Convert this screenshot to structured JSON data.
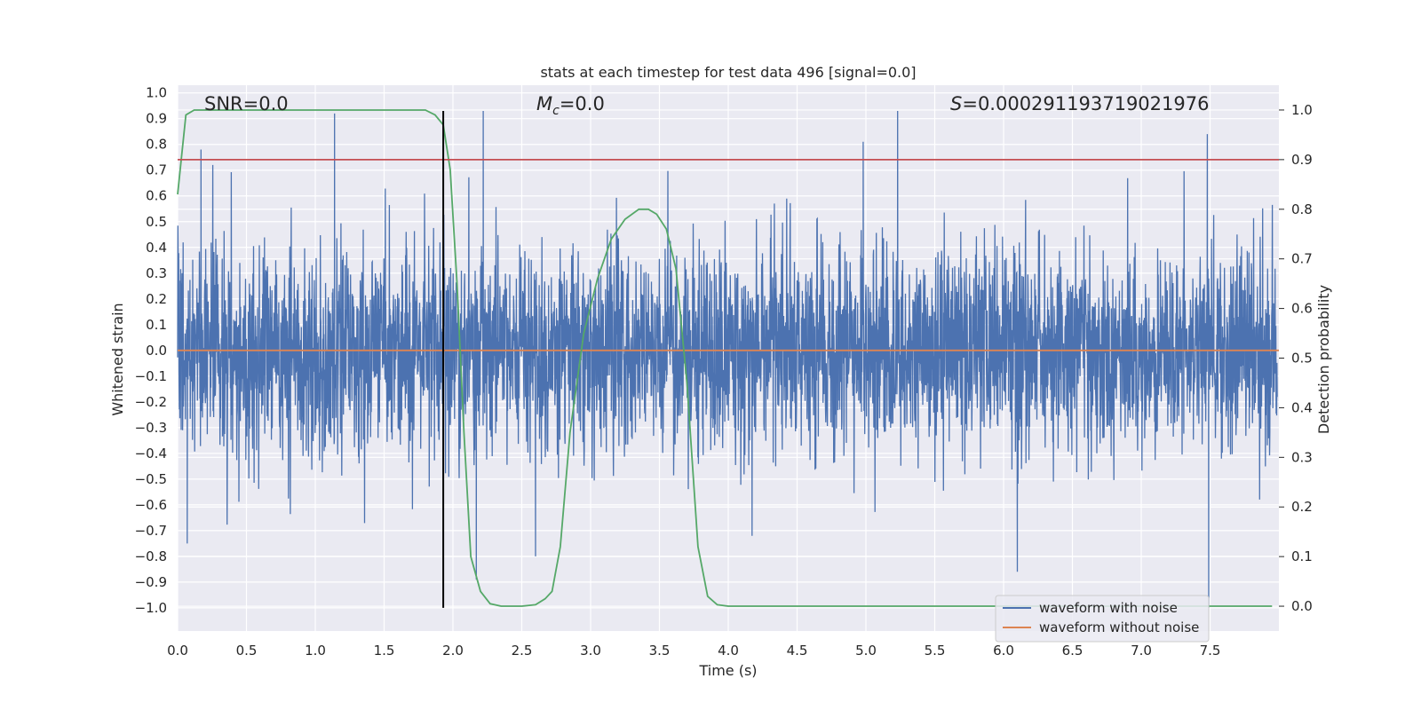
{
  "chart_data": {
    "type": "line",
    "title": "stats at each timestep for test data 496 [signal=0.0]",
    "xlabel": "Time (s)",
    "ylabel": "Whitened strain",
    "y2label": "Detection probability",
    "xlim": [
      0.0,
      8.0
    ],
    "ylim": [
      -1.09,
      1.03
    ],
    "y2lim": [
      -0.05,
      1.05
    ],
    "x_ticks": [
      "0.0",
      "0.5",
      "1.0",
      "1.5",
      "2.0",
      "2.5",
      "3.0",
      "3.5",
      "4.0",
      "4.5",
      "5.0",
      "5.5",
      "6.0",
      "6.5",
      "7.0",
      "7.5"
    ],
    "y_ticks": [
      "1.0",
      "0.9",
      "0.8",
      "0.7",
      "0.6",
      "0.5",
      "0.4",
      "0.3",
      "0.2",
      "0.1",
      "0.0",
      "−0.1",
      "−0.2",
      "−0.3",
      "−0.4",
      "−0.5",
      "−0.6",
      "−0.7",
      "−0.8",
      "−0.9",
      "−1.0"
    ],
    "y2_ticks": [
      "1.0",
      "0.9",
      "0.8",
      "0.7",
      "0.6",
      "0.5",
      "0.4",
      "0.3",
      "0.2",
      "0.1",
      "0.0"
    ],
    "grid": true,
    "legend_position": "lower-right",
    "annotations": {
      "snr": "SNR=0.0",
      "mc_symbol": "M",
      "mc_sub": "c",
      "mc_value": "=0.0",
      "s_symbol": "S",
      "s_value": "=0.000291193719021976"
    },
    "series": [
      {
        "name": "waveform with noise",
        "color": "#4c72b0",
        "axis": "left",
        "description": "dense noise, envelope mostly within ±0.5 with spikes",
        "spikes": [
          [
            0.17,
            0.78
          ],
          [
            1.14,
            0.92
          ],
          [
            2.22,
            0.93
          ],
          [
            5.23,
            0.93
          ],
          [
            4.98,
            0.81
          ],
          [
            7.48,
            0.84
          ],
          [
            6.1,
            -0.86
          ],
          [
            7.49,
            -1.0
          ],
          [
            0.07,
            -0.75
          ],
          [
            2.17,
            -0.89
          ],
          [
            2.6,
            -0.8
          ]
        ]
      },
      {
        "name": "waveform without noise",
        "color": "#dd8452",
        "axis": "left",
        "x": [
          0.0,
          8.0
        ],
        "y": [
          0.0,
          0.0
        ]
      },
      {
        "color": "#55a868",
        "axis": "right",
        "x": [
          0.0,
          0.06,
          0.12,
          0.3,
          1.0,
          1.5,
          1.8,
          1.87,
          1.93,
          1.98,
          2.03,
          2.08,
          2.13,
          2.2,
          2.27,
          2.35,
          2.5,
          2.6,
          2.67,
          2.72,
          2.78,
          2.85,
          2.95,
          3.05,
          3.15,
          3.25,
          3.35,
          3.42,
          3.48,
          3.55,
          3.62,
          3.7,
          3.78,
          3.85,
          3.92,
          4.0,
          5.0,
          6.0,
          7.0,
          7.95
        ],
        "y": [
          0.83,
          0.99,
          1.0,
          1.0,
          1.0,
          1.0,
          1.0,
          0.99,
          0.97,
          0.88,
          0.65,
          0.35,
          0.1,
          0.03,
          0.005,
          0.0,
          0.0,
          0.003,
          0.015,
          0.03,
          0.12,
          0.35,
          0.55,
          0.66,
          0.74,
          0.78,
          0.8,
          0.8,
          0.79,
          0.76,
          0.68,
          0.45,
          0.12,
          0.02,
          0.003,
          0.0,
          0.0,
          0.0,
          0.0,
          0.0
        ]
      },
      {
        "color": "#c44e52",
        "axis": "right",
        "x": [
          0.0,
          8.0
        ],
        "y": [
          0.9,
          0.9
        ]
      },
      {
        "color": "#000000",
        "axis": "left",
        "x": [
          1.93,
          1.93
        ],
        "y": [
          -1.0,
          0.93
        ]
      }
    ]
  }
}
